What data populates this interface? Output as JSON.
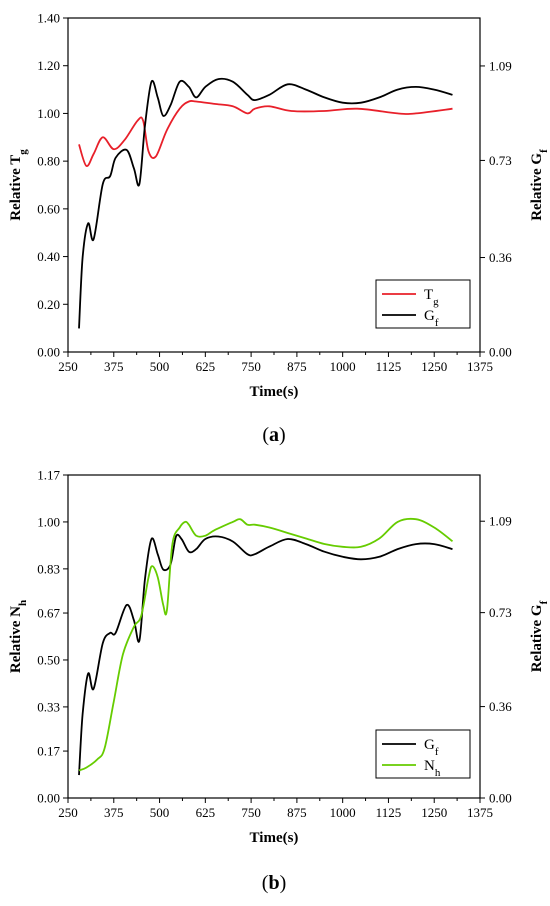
{
  "chart_data": [
    {
      "type": "line",
      "caption": {
        "open": "(",
        "letter": "a",
        "close": ")"
      },
      "xlabel": "Time(s)",
      "ylabel_left": {
        "base": "Relative T",
        "sub": "g"
      },
      "ylabel_right": {
        "base": "Relative G",
        "sub": "f"
      },
      "x_ticks": [
        "250",
        "375",
        "500",
        "625",
        "750",
        "875",
        "1000",
        "1125",
        "1250",
        "1375"
      ],
      "y_left_ticks": [
        "0.00",
        "0.20",
        "0.40",
        "0.60",
        "0.80",
        "1.00",
        "1.20",
        "1.40"
      ],
      "y_right_ticks": [
        "0.00",
        "0.36",
        "0.73",
        "1.09"
      ],
      "xlim": [
        250,
        1375
      ],
      "ylim_left": [
        0,
        1.4
      ],
      "ylim_right": [
        0,
        1.2727
      ],
      "legend_position": "lower-right",
      "series": [
        {
          "name": {
            "base": "T",
            "sub": "g"
          },
          "axis": "left",
          "color": "#e8202a",
          "x": [
            280,
            300,
            320,
            345,
            375,
            405,
            440,
            455,
            470,
            490,
            520,
            555,
            580,
            600,
            650,
            700,
            740,
            760,
            800,
            860,
            950,
            1040,
            1150,
            1200,
            1300
          ],
          "y": [
            0.87,
            0.78,
            0.83,
            0.9,
            0.85,
            0.89,
            0.97,
            0.97,
            0.84,
            0.82,
            0.93,
            1.02,
            1.05,
            1.05,
            1.04,
            1.03,
            1.0,
            1.02,
            1.03,
            1.01,
            1.01,
            1.02,
            1.0,
            1.0,
            1.02
          ]
        },
        {
          "name": {
            "base": "G",
            "sub": "f"
          },
          "axis": "right",
          "color": "#000000",
          "x": [
            280,
            290,
            305,
            320,
            345,
            365,
            380,
            410,
            430,
            445,
            460,
            478,
            495,
            510,
            530,
            555,
            580,
            600,
            625,
            660,
            700,
            740,
            760,
            800,
            850,
            900,
            950,
            1000,
            1050,
            1100,
            1150,
            1200,
            1250,
            1300
          ],
          "y": [
            0.09,
            0.36,
            0.49,
            0.43,
            0.64,
            0.67,
            0.74,
            0.77,
            0.7,
            0.64,
            0.86,
            1.03,
            0.97,
            0.9,
            0.94,
            1.03,
            1.01,
            0.97,
            1.01,
            1.04,
            1.03,
            0.98,
            0.96,
            0.98,
            1.02,
            1.0,
            0.97,
            0.95,
            0.95,
            0.97,
            1.0,
            1.01,
            1.0,
            0.98
          ]
        }
      ]
    },
    {
      "type": "line",
      "caption": {
        "open": "(",
        "letter": "b",
        "close": ")"
      },
      "xlabel": "Time(s)",
      "ylabel_left": {
        "base": "Relative N",
        "sub": "h"
      },
      "ylabel_right": {
        "base": "Relative G",
        "sub": "f"
      },
      "x_ticks": [
        "250",
        "375",
        "500",
        "625",
        "750",
        "875",
        "1000",
        "1125",
        "1250",
        "1375"
      ],
      "y_left_ticks": [
        "0.00",
        "0.17",
        "0.33",
        "0.50",
        "0.67",
        "0.83",
        "1.00",
        "1.17"
      ],
      "y_right_ticks": [
        "0.00",
        "0.36",
        "0.73",
        "1.09"
      ],
      "xlim": [
        250,
        1375
      ],
      "ylim_left": [
        0,
        1.17
      ],
      "ylim_right": [
        0,
        1.272
      ],
      "legend_position": "lower-right",
      "series": [
        {
          "name": {
            "base": "G",
            "sub": "f"
          },
          "axis": "right",
          "color": "#000000",
          "x": [
            280,
            290,
            305,
            320,
            345,
            365,
            380,
            410,
            430,
            445,
            460,
            478,
            495,
            510,
            530,
            545,
            560,
            580,
            600,
            625,
            660,
            700,
            740,
            760,
            800,
            850,
            900,
            950,
            1000,
            1050,
            1100,
            1150,
            1200,
            1250,
            1300
          ],
          "y": [
            0.09,
            0.33,
            0.49,
            0.43,
            0.61,
            0.65,
            0.65,
            0.76,
            0.7,
            0.62,
            0.86,
            1.02,
            0.96,
            0.9,
            0.92,
            1.03,
            1.02,
            0.97,
            0.98,
            1.02,
            1.03,
            1.01,
            0.96,
            0.96,
            0.99,
            1.02,
            1.0,
            0.97,
            0.95,
            0.94,
            0.95,
            0.98,
            1.0,
            1.0,
            0.98
          ]
        },
        {
          "name": {
            "base": "N",
            "sub": "h"
          },
          "axis": "left",
          "color": "#66cc00",
          "x": [
            280,
            300,
            330,
            350,
            375,
            400,
            430,
            450,
            470,
            480,
            495,
            510,
            520,
            535,
            555,
            570,
            580,
            600,
            625,
            650,
            700,
            720,
            740,
            760,
            800,
            850,
            900,
            950,
            1000,
            1050,
            1100,
            1150,
            1200,
            1250,
            1300
          ],
          "y": [
            0.1,
            0.11,
            0.14,
            0.18,
            0.35,
            0.52,
            0.62,
            0.66,
            0.8,
            0.84,
            0.8,
            0.7,
            0.68,
            0.92,
            0.98,
            1.0,
            0.99,
            0.95,
            0.95,
            0.97,
            1.0,
            1.01,
            0.99,
            0.99,
            0.98,
            0.96,
            0.94,
            0.92,
            0.91,
            0.91,
            0.94,
            1.0,
            1.01,
            0.98,
            0.93
          ]
        }
      ]
    }
  ]
}
